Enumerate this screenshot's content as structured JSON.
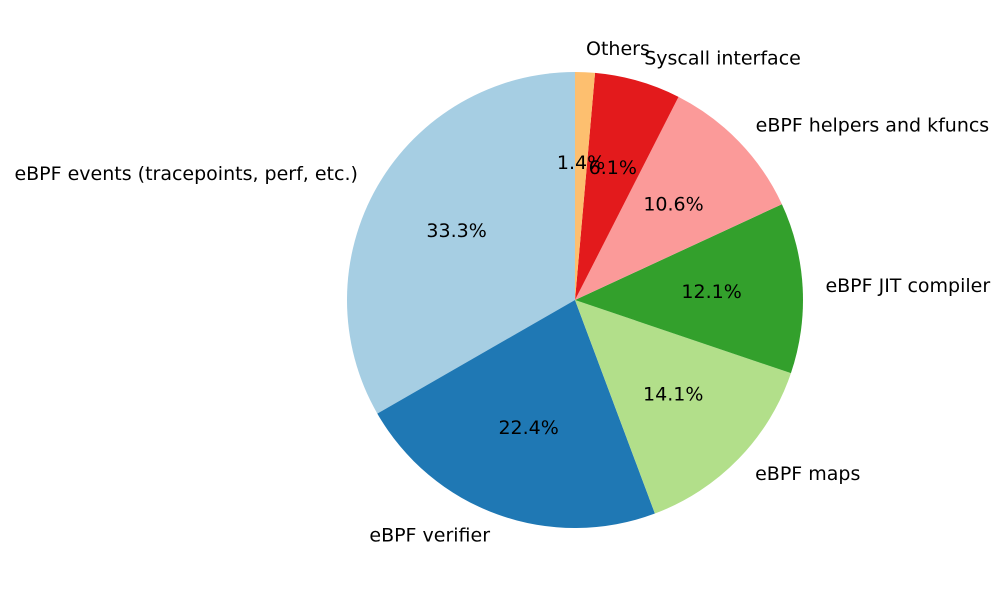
{
  "chart_data": {
    "type": "pie",
    "categories": [
      "eBPF events (tracepoints, perf, etc.)",
      "eBPF verifier",
      "eBPF maps",
      "eBPF JIT compiler",
      "eBPF helpers and kfuncs",
      "Syscall interface",
      "Others"
    ],
    "values": [
      33.3,
      22.4,
      14.1,
      12.1,
      10.6,
      6.1,
      1.4
    ],
    "value_labels": [
      "33.3%",
      "22.4%",
      "14.1%",
      "12.1%",
      "10.6%",
      "6.1%",
      "1.4%"
    ],
    "colors": [
      "#a6cee3",
      "#1f78b4",
      "#b2df8a",
      "#33a02c",
      "#fb9a99",
      "#e31a1c",
      "#fdbf6f"
    ]
  }
}
